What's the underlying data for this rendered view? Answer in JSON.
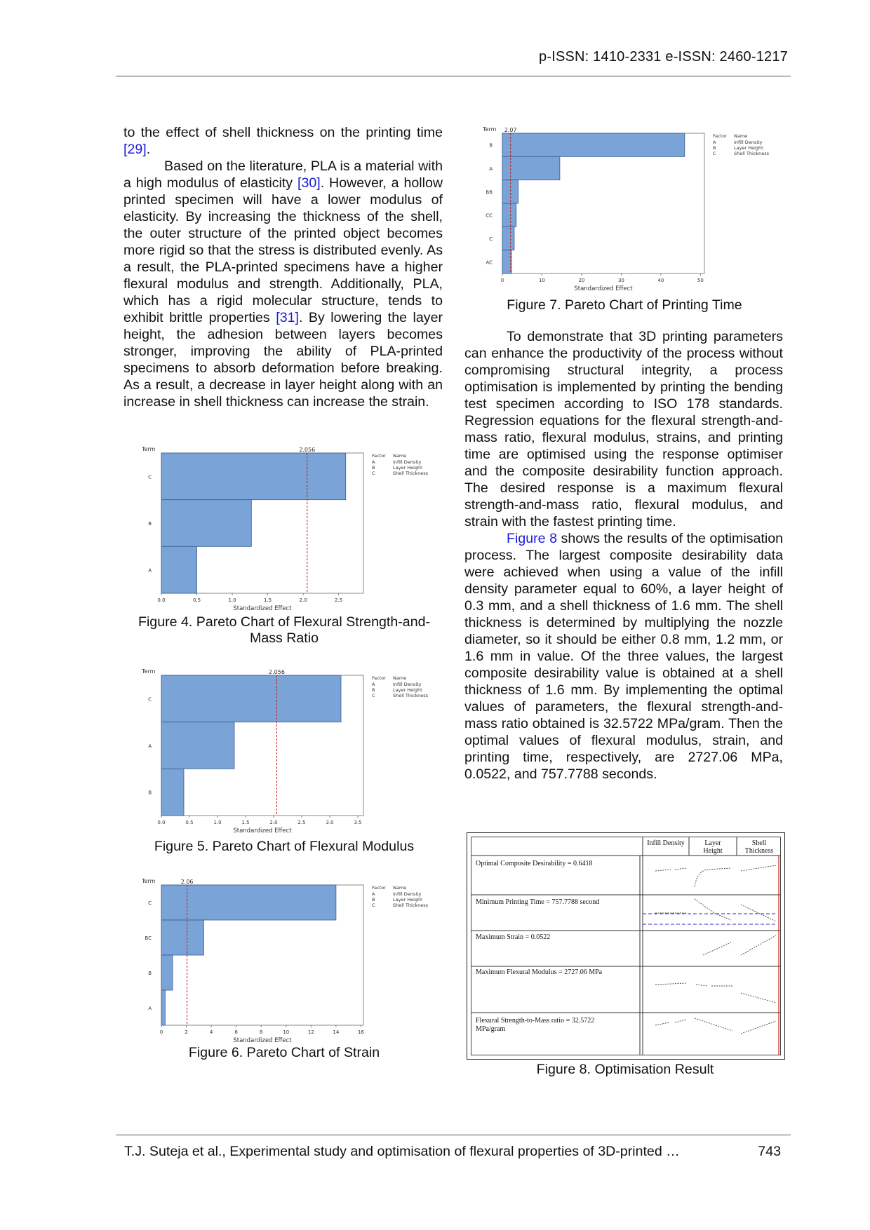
{
  "header": {
    "issn": "p-ISSN: 1410-2331  e-ISSN: 2460-1217"
  },
  "left_column": {
    "p1_a": "to the effect of shell thickness on the printing time ",
    "p1_cite": "[29]",
    "p1_b": ".",
    "p2_a": "Based on the literature, PLA is a material with a high modulus of elasticity ",
    "p2_cite1": "[30]",
    "p2_b": ". However, a hollow printed specimen will have a lower modulus of elasticity. By increasing the thickness of the shell, the outer structure of the printed object becomes more rigid so that the stress is distributed evenly. As a result, the PLA-printed specimens have a higher flexural modulus and strength. Additionally, PLA, which has a rigid molecular structure, tends to exhibit brittle properties ",
    "p2_cite2": "[31]",
    "p2_c": ". By lowering the layer height, the adhesion between layers becomes stronger, improving the ability of PLA-printed specimens to absorb deformation before breaking. As a result, a decrease in layer height along with an increase in shell thickness can increase the strain."
  },
  "right_column": {
    "p1": "To demonstrate that 3D printing parameters can enhance the productivity of the process without compromising structural integrity, a process optimisation is implemented by printing the bending test specimen according to ISO 178 standards. Regression equations for the flexural strength-and-mass ratio, flexural modulus, strains, and printing time are optimised using the response optimiser and the composite desirability function approach. The desired response is a maximum flexural strength-and-mass ratio, flexural modulus, and strain with the fastest printing time.",
    "p2_cite": "Figure 8",
    "p2_b": " shows the results of the optimisation process. The largest composite desirability data were achieved when using a value of the infill density parameter equal to 60%, a layer height of 0.3 mm, and a shell thickness of 1.6 mm. The shell thickness is determined by multiplying the nozzle diameter, so it should be either 0.8 mm, 1.2 mm, or 1.6 mm in value. Of the three values, the largest composite desirability value is obtained at a shell thickness of 1.6 mm. By implementing the optimal values of parameters, the flexural strength-and-mass ratio obtained is 32.5722 MPa/gram. Then the optimal values of flexural modulus, strain, and printing time, respectively, are 2727.06 MPa, 0.0522, and 757.7788 seconds."
  },
  "legend": {
    "title_factor": "Factor",
    "title_name": "Name",
    "rows": [
      [
        "A",
        "Infill Density"
      ],
      [
        "B",
        "Layer Height"
      ],
      [
        "C",
        "Shell Thickness"
      ]
    ]
  },
  "axis_common": {
    "term": "Term",
    "xlabel": "Standardized Effect"
  },
  "captions": {
    "fig4": "Figure 4. Pareto Chart of Flexural Strength-and-Mass Ratio",
    "fig5": "Figure 5. Pareto Chart of Flexural Modulus",
    "fig6": "Figure 6. Pareto Chart of Strain",
    "fig7": "Figure 7. Pareto Chart of Printing Time",
    "fig8": "Figure 8. Optimisation Result"
  },
  "optimisation": {
    "col_headers": [
      "Infill Density",
      "Layer Height",
      "Shell Thickness"
    ],
    "rows": [
      "Optimal Composite Desirability = 0.6418",
      "Minimum Printing Time = 757.7788 second",
      "Maximum Strain = 0.0522",
      "Maximum Flexural Modulus = 2727.06 MPa",
      "Flexural Strength-to-Mass ratio = 32.5722 MPa/gram"
    ]
  },
  "footer": {
    "citation": "T.J. Suteja et al., Experimental study and optimisation of flexural properties of 3D-printed …",
    "page": "743"
  },
  "colors": {
    "bar": "#7aa3d8",
    "bar_edge": "#3a5c8c",
    "ref_line": "#c0201a",
    "link": "#1a1adc"
  },
  "chart_data": [
    {
      "id": "fig4",
      "type": "bar",
      "orientation": "horizontal",
      "categories": [
        "C",
        "B",
        "A"
      ],
      "values": [
        2.6,
        1.27,
        0.5
      ],
      "reference": 2.056,
      "reference_label": "2.056",
      "xlim": [
        0,
        2.85
      ],
      "xticks": [
        "0.0",
        "0.5",
        "1.0",
        "1.5",
        "2.0",
        "2.5"
      ],
      "xtick_values": [
        0,
        0.5,
        1.0,
        1.5,
        2.0,
        2.5
      ],
      "ylabel": "Term",
      "xlabel": "Standardized Effect",
      "legend": "right"
    },
    {
      "id": "fig5",
      "type": "bar",
      "orientation": "horizontal",
      "categories": [
        "C",
        "A",
        "B"
      ],
      "values": [
        3.2,
        1.3,
        0.4
      ],
      "reference": 2.056,
      "reference_label": "2.056",
      "xlim": [
        0,
        3.6
      ],
      "xticks": [
        "0.0",
        "0.5",
        "1.0",
        "1.5",
        "2.0",
        "2.5",
        "3.0",
        "3.5"
      ],
      "xtick_values": [
        0,
        0.5,
        1.0,
        1.5,
        2.0,
        2.5,
        3.0,
        3.5
      ],
      "ylabel": "Term",
      "xlabel": "Standardized Effect",
      "legend": "right"
    },
    {
      "id": "fig6",
      "type": "bar",
      "orientation": "horizontal",
      "categories": [
        "C",
        "BC",
        "B",
        "A"
      ],
      "values": [
        14.0,
        3.4,
        0.9,
        0.3
      ],
      "reference": 2.06,
      "reference_label": "2.06",
      "xlim": [
        0,
        16.2
      ],
      "xticks": [
        "0",
        "2",
        "4",
        "6",
        "8",
        "10",
        "12",
        "14",
        "16"
      ],
      "xtick_values": [
        0,
        2,
        4,
        6,
        8,
        10,
        12,
        14,
        16
      ],
      "ylabel": "Term",
      "xlabel": "Standardized Effect",
      "legend": "right"
    },
    {
      "id": "fig7",
      "type": "bar",
      "orientation": "horizontal",
      "categories": [
        "B",
        "A",
        "BB",
        "CC",
        "C",
        "AC"
      ],
      "values": [
        46.0,
        14.5,
        4.0,
        3.5,
        3.0,
        2.3
      ],
      "reference": 2.07,
      "reference_label": "2.07",
      "xlim": [
        0,
        51
      ],
      "xticks": [
        "0",
        "10",
        "20",
        "30",
        "40",
        "50"
      ],
      "xtick_values": [
        0,
        10,
        20,
        30,
        40,
        50
      ],
      "ylabel": "Term",
      "xlabel": "Standardized Effect",
      "legend": "right"
    }
  ]
}
